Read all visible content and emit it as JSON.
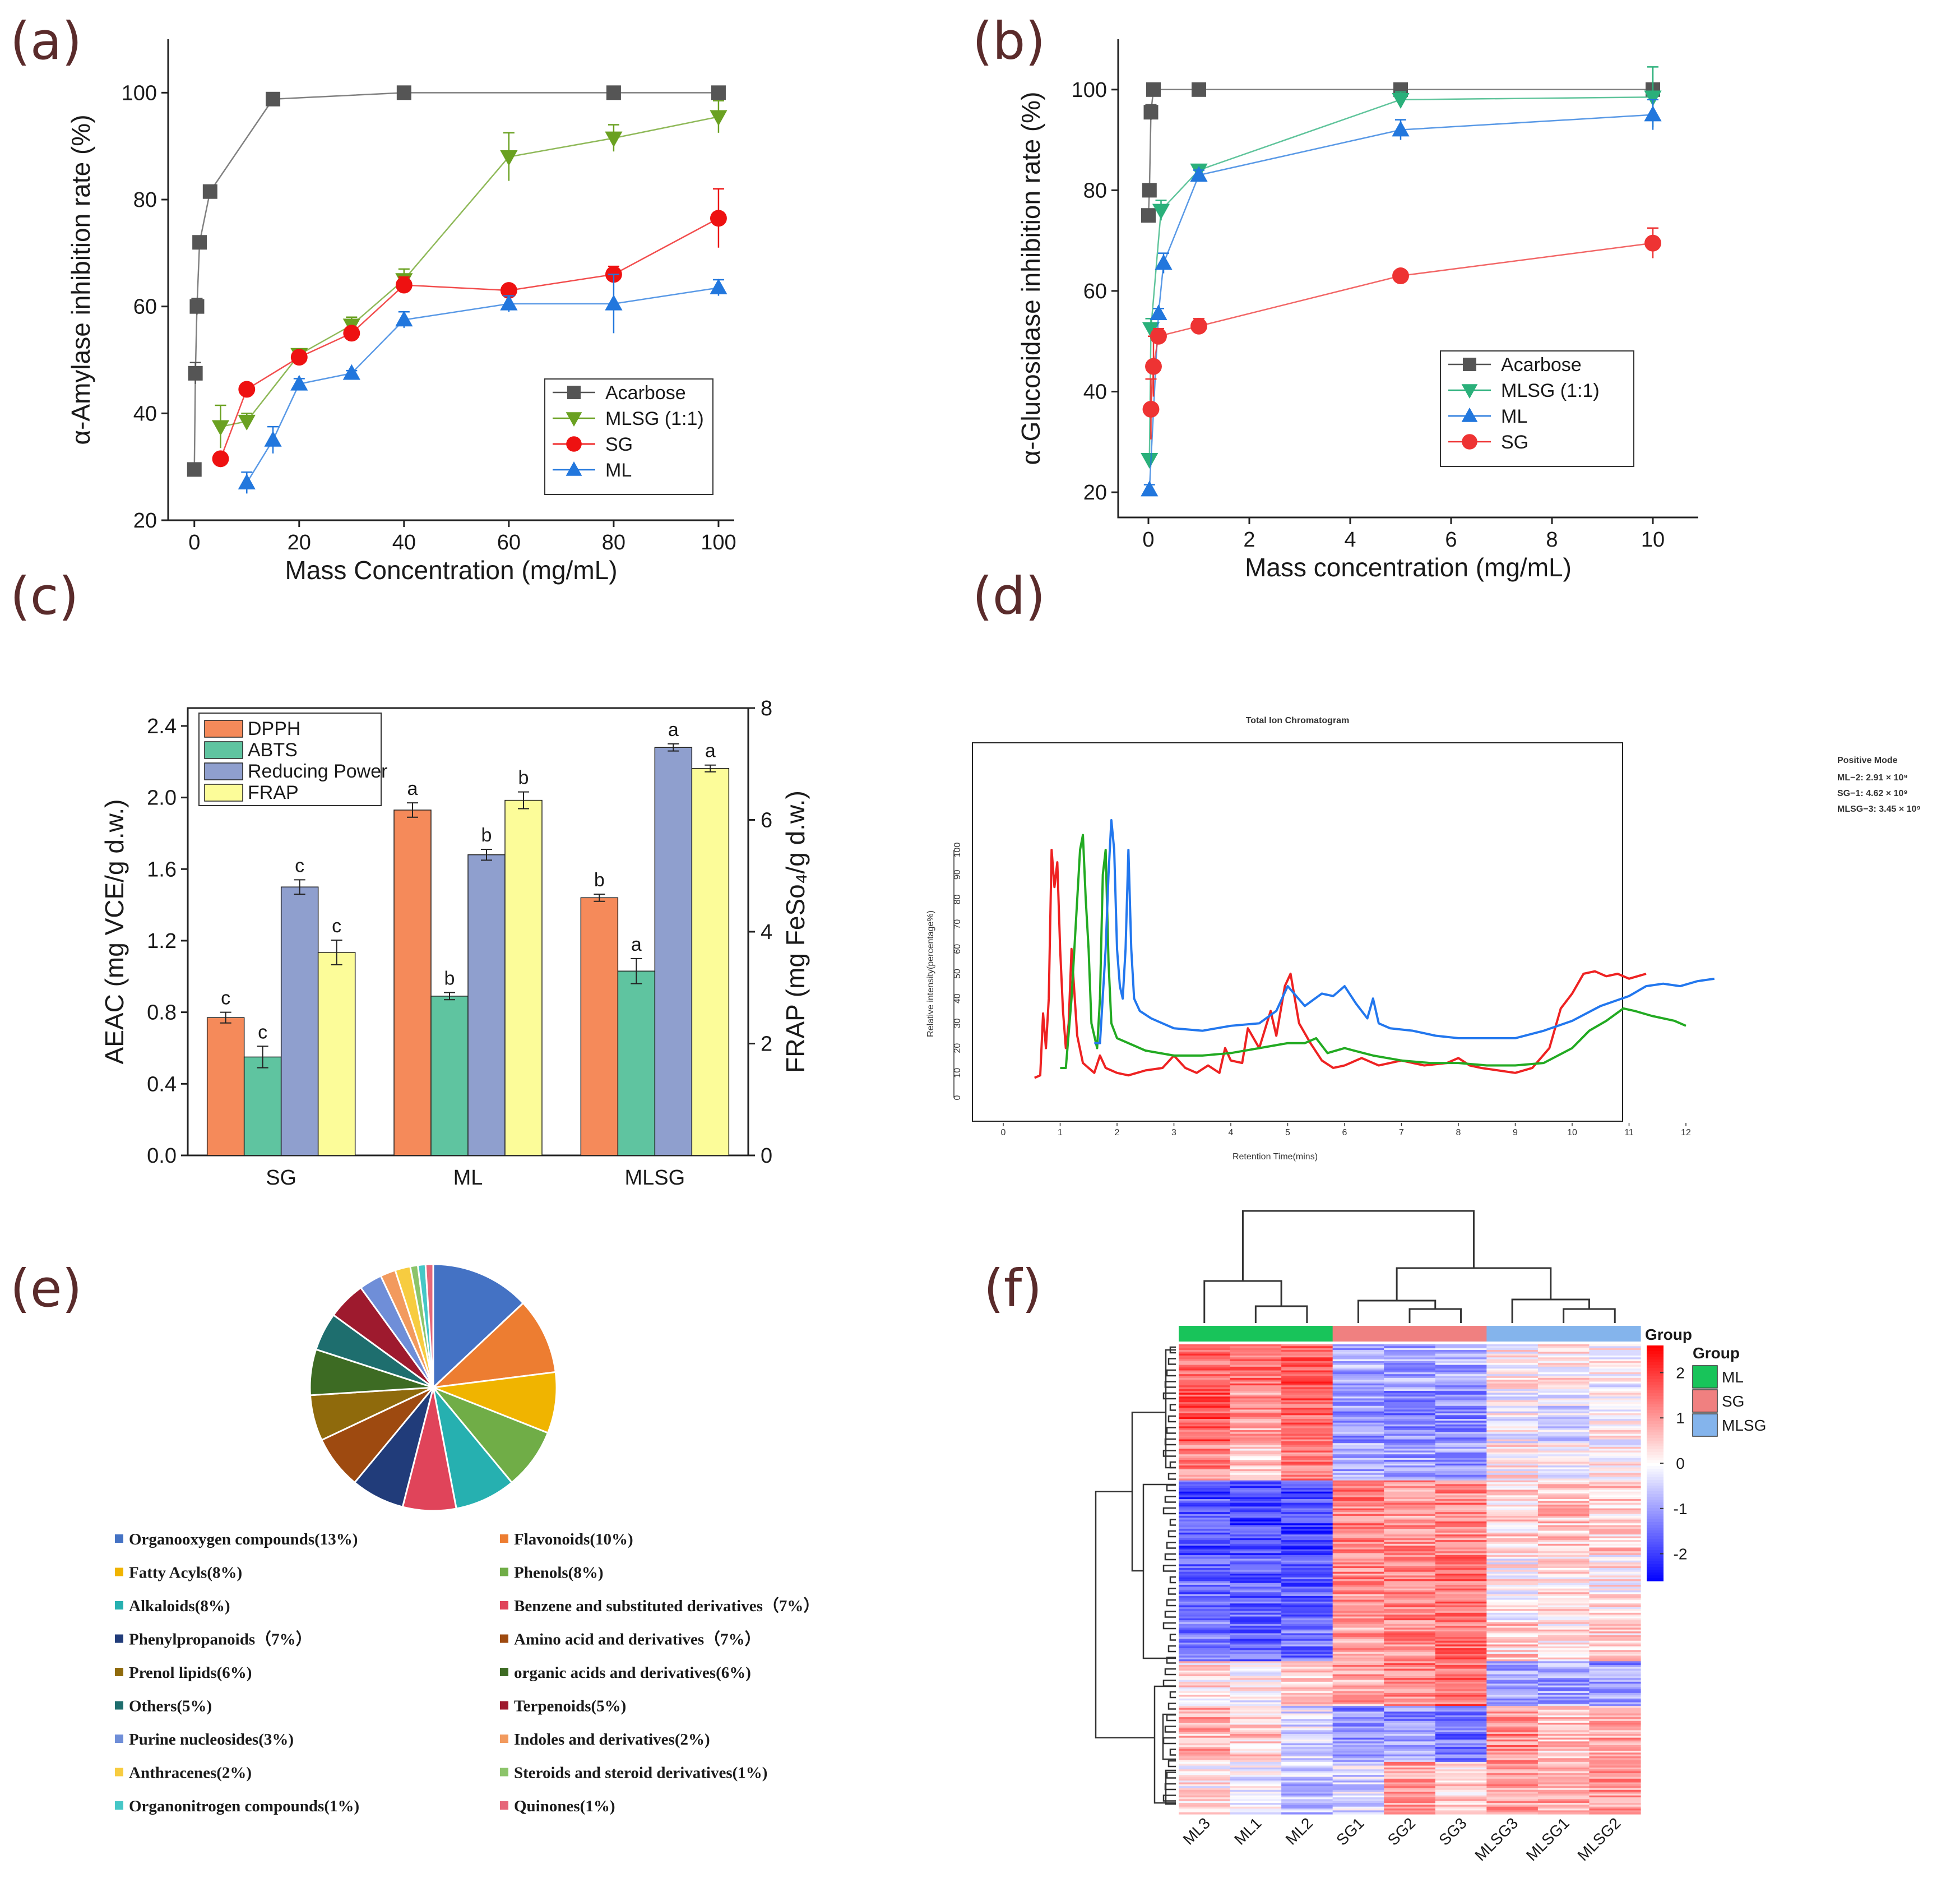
{
  "panels": {
    "a": "(a)",
    "b": "(b)",
    "c": "(c)",
    "d": "(d)",
    "e": "(e)",
    "f": "(f)"
  },
  "chart_data": [
    {
      "id": "a",
      "type": "line",
      "title": "",
      "xlabel": "Mass Concentration (mg/mL)",
      "ylabel": "α-Amylase inhibition rate (%)",
      "xlim": [
        -5,
        103
      ],
      "ylim": [
        20,
        110
      ],
      "xticks": [
        0,
        20,
        40,
        60,
        80,
        100
      ],
      "yticks": [
        20,
        40,
        60,
        80,
        100
      ],
      "legend_position": "bottom-right",
      "series": [
        {
          "name": "Acarbose",
          "color": "#555555",
          "marker": "square",
          "x": [
            0,
            0.2,
            0.5,
            1,
            3,
            15,
            40,
            80,
            100
          ],
          "y": [
            29.5,
            47.5,
            60,
            72,
            81.5,
            98.8,
            100,
            100,
            100
          ],
          "err": [
            0,
            2,
            1.5,
            1,
            1,
            0.5,
            0.5,
            0.5,
            0.5
          ]
        },
        {
          "name": "MLSG (1:1)",
          "color": "#6aa121",
          "marker": "triangle-down",
          "x": [
            5,
            10,
            20,
            30,
            40,
            60,
            80,
            100
          ],
          "y": [
            37.5,
            38.5,
            51,
            56.5,
            65,
            88,
            91.5,
            95.5
          ],
          "err": [
            4,
            1.5,
            1,
            1.5,
            2,
            4.5,
            2.5,
            3
          ]
        },
        {
          "name": "SG",
          "color": "#ee1111",
          "marker": "circle",
          "x": [
            5,
            10,
            20,
            30,
            40,
            60,
            80,
            100
          ],
          "y": [
            31.5,
            44.5,
            50.5,
            55,
            64,
            63,
            66,
            76.5
          ],
          "err": [
            1,
            0.5,
            1,
            1,
            1.5,
            0.5,
            1.5,
            5.5
          ]
        },
        {
          "name": "ML",
          "color": "#2277dd",
          "marker": "triangle-up",
          "x": [
            10,
            15,
            20,
            30,
            40,
            60,
            80,
            100
          ],
          "y": [
            27,
            35,
            45.5,
            47.5,
            57.5,
            60.5,
            60.5,
            63.5
          ],
          "err": [
            2,
            2.5,
            1,
            0.5,
            1.5,
            1.5,
            5.5,
            1.5
          ]
        }
      ]
    },
    {
      "id": "b",
      "type": "line",
      "title": "",
      "xlabel": "Mass concentration (mg/mL)",
      "ylabel": "α-Glucosidase inhibition rate (%)",
      "xlim": [
        -0.6,
        10.9
      ],
      "ylim": [
        15,
        110
      ],
      "xticks": [
        0,
        2,
        4,
        6,
        8,
        10
      ],
      "yticks": [
        20,
        40,
        60,
        80,
        100
      ],
      "legend_position": "bottom-right",
      "series": [
        {
          "name": "Acarbose",
          "color": "#555555",
          "marker": "square",
          "x": [
            0,
            0.02,
            0.05,
            0.1,
            1,
            5,
            10
          ],
          "y": [
            75,
            80,
            95.5,
            100,
            100,
            100,
            100
          ],
          "err": [
            1,
            1,
            1.5,
            0.5,
            0.5,
            0.5,
            0.5
          ]
        },
        {
          "name": "MLSG (1:1)",
          "color": "#2ab07a",
          "marker": "triangle-down",
          "x": [
            0.02,
            0.05,
            0.25,
            1,
            5,
            10
          ],
          "y": [
            26.5,
            52.5,
            76,
            84,
            98,
            98.5
          ],
          "err": [
            1,
            2,
            2,
            1,
            1.5,
            6
          ]
        },
        {
          "name": "ML",
          "color": "#2277dd",
          "marker": "triangle-up",
          "x": [
            0.02,
            0.2,
            0.3,
            1,
            5,
            10
          ],
          "y": [
            20.5,
            55.5,
            65.5,
            83,
            92,
            95
          ],
          "err": [
            1,
            1,
            2,
            1,
            2,
            3
          ]
        },
        {
          "name": "SG",
          "color": "#ee3333",
          "marker": "circle",
          "x": [
            0.05,
            0.1,
            0.2,
            1,
            5,
            10
          ],
          "y": [
            36.5,
            45,
            51,
            53,
            63,
            69.5
          ],
          "err": [
            6,
            6,
            1.5,
            1.5,
            1,
            3
          ]
        }
      ]
    },
    {
      "id": "c",
      "type": "bar",
      "categories": [
        "SG",
        "ML",
        "MLSG"
      ],
      "ylabel": "AEAC (mg VCE/g d.w.)",
      "ylabel_right": "FRAP (mg FeSo₄/g d.w.)",
      "ylim": [
        0,
        2.5
      ],
      "ylim_right": [
        0,
        8
      ],
      "yticks": [
        "0.0",
        "0.4",
        "0.8",
        "1.2",
        "1.6",
        "2.0",
        "2.4"
      ],
      "yticks_right": [
        "0",
        "2",
        "4",
        "6",
        "8"
      ],
      "legend_position": "top-left",
      "series": [
        {
          "name": "DPPH",
          "color": "#f58a5a",
          "axis": "left",
          "values": [
            0.77,
            1.93,
            1.44
          ],
          "err": [
            0.03,
            0.04,
            0.02
          ],
          "labels": [
            "c",
            "a",
            "b"
          ]
        },
        {
          "name": "ABTS",
          "color": "#5fc4a0",
          "axis": "left",
          "values": [
            0.55,
            0.89,
            1.03
          ],
          "err": [
            0.06,
            0.02,
            0.07
          ],
          "labels": [
            "c",
            "b",
            "a"
          ]
        },
        {
          "name": "Reducing Power",
          "color": "#8f9fce",
          "axis": "left",
          "values": [
            1.5,
            1.68,
            2.28
          ],
          "err": [
            0.04,
            0.03,
            0.02
          ],
          "labels": [
            "c",
            "b",
            "a"
          ]
        },
        {
          "name": "FRAP",
          "color": "#fcfc99",
          "axis": "right",
          "values": [
            3.63,
            6.35,
            6.92
          ],
          "err": [
            0.22,
            0.15,
            0.06
          ],
          "labels": [
            "c",
            "b",
            "a"
          ]
        }
      ]
    },
    {
      "id": "d",
      "type": "line",
      "title": "Total Ion Chromatogram",
      "xlabel": "Retention Time(mins)",
      "ylabel": "Relative intensity(percentage%)",
      "xticks": [
        "0",
        "1",
        "2",
        "3",
        "4",
        "5",
        "6",
        "7",
        "8",
        "9",
        "10",
        "11",
        "12"
      ],
      "yticks": [
        "0",
        "10",
        "20",
        "30",
        "40",
        "50",
        "60",
        "70",
        "80",
        "90",
        "100"
      ],
      "legend_title": "Positive Mode",
      "legend": [
        {
          "label": "ML−2: 2.91 × 10⁹",
          "color": "#ee2222"
        },
        {
          "label": "SG−1: 4.62 × 10⁹",
          "color": "#22aa22"
        },
        {
          "label": "MLSG−3: 3.45 × 10⁹",
          "color": "#22aaee"
        }
      ],
      "series": [
        {
          "name": "ML-2",
          "color": "#ee2222",
          "x": [
            0.55,
            0.65,
            0.7,
            0.75,
            0.8,
            0.85,
            0.9,
            0.95,
            1.0,
            1.05,
            1.1,
            1.15,
            1.2,
            1.3,
            1.4,
            1.5,
            1.6,
            1.7,
            1.8,
            1.9,
            2.0,
            2.2,
            2.5,
            2.8,
            3.0,
            3.2,
            3.4,
            3.6,
            3.8,
            3.9,
            4.0,
            4.2,
            4.3,
            4.5,
            4.7,
            4.8,
            4.95,
            5.05,
            5.2,
            5.4,
            5.6,
            5.8,
            6.0,
            6.3,
            6.6,
            7.0,
            7.4,
            7.8,
            8.0,
            8.2,
            8.4,
            8.7,
            9.0,
            9.3,
            9.6,
            9.8,
            10.0,
            10.2,
            10.4,
            10.6,
            10.8,
            11.0,
            11.3
          ],
          "y": [
            8,
            9,
            34,
            20,
            40,
            100,
            85,
            95,
            60,
            35,
            20,
            30,
            60,
            25,
            14,
            12,
            10,
            17,
            12,
            11,
            10,
            9,
            11,
            12,
            17,
            12,
            10,
            13,
            10,
            20,
            15,
            14,
            28,
            20,
            35,
            25,
            45,
            50,
            30,
            22,
            15,
            12,
            13,
            16,
            13,
            15,
            13,
            14,
            16,
            13,
            12,
            11,
            10,
            12,
            20,
            36,
            42,
            50,
            51,
            49,
            50,
            48,
            50
          ]
        },
        {
          "name": "SG-1",
          "color": "#22aa22",
          "x": [
            1.0,
            1.1,
            1.2,
            1.3,
            1.35,
            1.4,
            1.45,
            1.5,
            1.55,
            1.6,
            1.65,
            1.7,
            1.75,
            1.8,
            1.85,
            1.9,
            2.0,
            2.2,
            2.5,
            3.0,
            3.5,
            4.0,
            4.5,
            5.0,
            5.3,
            5.5,
            5.7,
            6.0,
            6.5,
            7.0,
            7.5,
            8.0,
            8.5,
            9.0,
            9.5,
            10.0,
            10.3,
            10.6,
            10.9,
            11.1,
            11.4,
            11.8,
            12.0
          ],
          "y": [
            12,
            12,
            40,
            80,
            100,
            106,
            80,
            60,
            30,
            25,
            20,
            40,
            90,
            100,
            55,
            30,
            24,
            22,
            19,
            17,
            17,
            18,
            20,
            22,
            22,
            24,
            18,
            20,
            17,
            15,
            14,
            14,
            13,
            13,
            14,
            20,
            27,
            31,
            36,
            35,
            33,
            31,
            29
          ]
        },
        {
          "name": "MLSG-3",
          "color": "#2277ee",
          "x": [
            1.6,
            1.7,
            1.8,
            1.85,
            1.9,
            1.95,
            2.0,
            2.05,
            2.1,
            2.15,
            2.2,
            2.25,
            2.3,
            2.4,
            2.6,
            2.8,
            3.0,
            3.5,
            4.0,
            4.5,
            4.8,
            5.0,
            5.3,
            5.6,
            5.8,
            6.0,
            6.2,
            6.4,
            6.5,
            6.6,
            6.8,
            7.2,
            7.6,
            8.0,
            8.5,
            9.0,
            9.5,
            10.0,
            10.5,
            11.0,
            11.3,
            11.6,
            11.9,
            12.2,
            12.5
          ],
          "y": [
            22,
            22,
            60,
            90,
            112,
            100,
            60,
            45,
            40,
            60,
            100,
            60,
            40,
            35,
            32,
            30,
            28,
            27,
            29,
            30,
            35,
            45,
            37,
            42,
            41,
            45,
            38,
            32,
            40,
            30,
            28,
            27,
            25,
            24,
            24,
            24,
            27,
            31,
            37,
            41,
            45,
            46,
            45,
            47,
            48
          ]
        }
      ]
    },
    {
      "id": "e",
      "type": "pie",
      "slices": [
        {
          "label": "Organooxygen compounds(13%)",
          "value": 13,
          "color": "#4472c4"
        },
        {
          "label": "Flavonoids(10%)",
          "value": 10,
          "color": "#ed7d31"
        },
        {
          "label": "Fatty Acyls(8%)",
          "value": 8,
          "color": "#f0b400"
        },
        {
          "label": "Phenols(8%)",
          "value": 8,
          "color": "#70ad47"
        },
        {
          "label": "Alkaloids(8%)",
          "value": 8,
          "color": "#26b0b0"
        },
        {
          "label": "Benzene and substituted derivatives（7%）",
          "value": 7,
          "color": "#e0445a"
        },
        {
          "label": "Phenylpropanoids（7%）",
          "value": 7,
          "color": "#213c7a"
        },
        {
          "label": "Amino acid and derivatives（7%）",
          "value": 7,
          "color": "#9e4a10"
        },
        {
          "label": "Prenol lipids(6%)",
          "value": 6,
          "color": "#8f6a0c"
        },
        {
          "label": "organic acids and derivatives(6%)",
          "value": 6,
          "color": "#3d6b23"
        },
        {
          "label": "Others(5%)",
          "value": 5,
          "color": "#1e6e6e"
        },
        {
          "label": "Terpenoids(5%)",
          "value": 5,
          "color": "#9e1a2e"
        },
        {
          "label": "Purine nucleosides(3%)",
          "value": 3,
          "color": "#6f8ed8"
        },
        {
          "label": "Indoles and derivatives(2%)",
          "value": 2,
          "color": "#f29a5e"
        },
        {
          "label": "Anthracenes(2%)",
          "value": 2,
          "color": "#f7cc40"
        },
        {
          "label": "Steroids and steroid derivatives(1%)",
          "value": 1,
          "color": "#8cc46a"
        },
        {
          "label": "Organonitrogen compounds(1%)",
          "value": 1,
          "color": "#45c7c7"
        },
        {
          "label": "Quinones(1%)",
          "value": 1,
          "color": "#e6677a"
        }
      ]
    },
    {
      "id": "f",
      "type": "heatmap",
      "columns": [
        "ML3",
        "ML1",
        "ML2",
        "SG1",
        "SG2",
        "SG3",
        "MLSG3",
        "MLSG1",
        "MLSG2"
      ],
      "column_groups": [
        "ML",
        "ML",
        "ML",
        "SG",
        "SG",
        "SG",
        "MLSG",
        "MLSG",
        "MLSG"
      ],
      "group_title_top": "Group",
      "group_legend_title": "Group",
      "groups": [
        {
          "name": "ML",
          "color": "#18c45a"
        },
        {
          "name": "SG",
          "color": "#f08080"
        },
        {
          "name": "MLSG",
          "color": "#84b4ec"
        }
      ],
      "colorbar_ticks": [
        "2",
        "1",
        "0",
        "-1",
        "-2"
      ],
      "colorbar_range": [
        -2.6,
        2.6
      ],
      "row_blocks": [
        {
          "rows": 25,
          "pattern": [
            1.6,
            1.5,
            1.7,
            -0.8,
            -0.9,
            -0.8,
            0.1,
            0.2,
            0.0
          ]
        },
        {
          "rows": 28,
          "pattern": [
            1.8,
            1.0,
            1.6,
            -1.0,
            -1.2,
            -1.1,
            -0.1,
            -0.3,
            0.1
          ]
        },
        {
          "rows": 20,
          "pattern": [
            1.2,
            0.6,
            1.4,
            -0.9,
            -1.0,
            -1.0,
            0.2,
            0.0,
            0.1
          ]
        },
        {
          "rows": 40,
          "pattern": [
            -1.8,
            -1.9,
            -1.9,
            1.3,
            1.1,
            1.2,
            0.4,
            0.6,
            0.5
          ]
        },
        {
          "rows": 35,
          "pattern": [
            -1.5,
            -1.6,
            -1.6,
            1.2,
            1.3,
            1.4,
            0.1,
            0.3,
            0.2
          ]
        },
        {
          "rows": 22,
          "pattern": [
            -1.3,
            -1.5,
            -1.4,
            1.0,
            1.2,
            1.5,
            0.5,
            0.3,
            0.4
          ]
        },
        {
          "rows": 24,
          "pattern": [
            0.3,
            0.1,
            0.4,
            0.9,
            1.3,
            1.5,
            -0.8,
            -0.9,
            -1.0
          ]
        },
        {
          "rows": 30,
          "pattern": [
            0.8,
            0.5,
            -0.3,
            -1.2,
            -1.1,
            -1.4,
            1.2,
            0.6,
            0.9
          ]
        },
        {
          "rows": 28,
          "pattern": [
            0.2,
            -0.2,
            -0.6,
            -0.4,
            0.9,
            0.4,
            1.1,
            0.8,
            1.0
          ]
        }
      ]
    }
  ]
}
